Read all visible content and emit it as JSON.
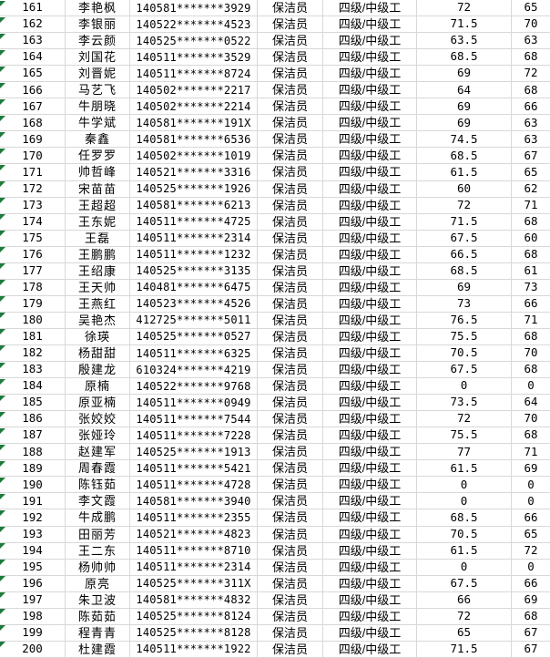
{
  "sheet": {
    "kind": "spreadsheet-fragment",
    "visible_rows": "161-200",
    "columns": [
      "row-number",
      "name",
      "id-number",
      "position",
      "grade-level",
      "score-1",
      "score-2"
    ]
  },
  "colors": {
    "gridline": "#d8d8d8",
    "triangle": "#1e7b3c",
    "text": "#000000",
    "background": "#ffffff"
  },
  "icons": {
    "error_indicator": "cell-error-triangle"
  },
  "rows": [
    {
      "num": "161",
      "name": "李艳枫",
      "id": "140581*******3929",
      "position": "保洁员",
      "level": "四级/中级工",
      "score1": "72",
      "score2": "65"
    },
    {
      "num": "162",
      "name": "李银丽",
      "id": "140522*******4523",
      "position": "保洁员",
      "level": "四级/中级工",
      "score1": "71.5",
      "score2": "70"
    },
    {
      "num": "163",
      "name": "李云颜",
      "id": "140525*******0522",
      "position": "保洁员",
      "level": "四级/中级工",
      "score1": "63.5",
      "score2": "63"
    },
    {
      "num": "164",
      "name": "刘国花",
      "id": "140511*******3529",
      "position": "保洁员",
      "level": "四级/中级工",
      "score1": "68.5",
      "score2": "68"
    },
    {
      "num": "165",
      "name": "刘晋妮",
      "id": "140511*******8724",
      "position": "保洁员",
      "level": "四级/中级工",
      "score1": "69",
      "score2": "72"
    },
    {
      "num": "166",
      "name": "马艺飞",
      "id": "140502*******2217",
      "position": "保洁员",
      "level": "四级/中级工",
      "score1": "64",
      "score2": "68"
    },
    {
      "num": "167",
      "name": "牛朋晓",
      "id": "140502*******2214",
      "position": "保洁员",
      "level": "四级/中级工",
      "score1": "69",
      "score2": "66"
    },
    {
      "num": "168",
      "name": "牛学斌",
      "id": "140581*******191X",
      "position": "保洁员",
      "level": "四级/中级工",
      "score1": "69",
      "score2": "63"
    },
    {
      "num": "169",
      "name": "秦鑫",
      "id": "140581*******6536",
      "position": "保洁员",
      "level": "四级/中级工",
      "score1": "74.5",
      "score2": "63"
    },
    {
      "num": "170",
      "name": "任罗罗",
      "id": "140502*******1019",
      "position": "保洁员",
      "level": "四级/中级工",
      "score1": "68.5",
      "score2": "67"
    },
    {
      "num": "171",
      "name": "帅哲峰",
      "id": "140521*******3316",
      "position": "保洁员",
      "level": "四级/中级工",
      "score1": "61.5",
      "score2": "65"
    },
    {
      "num": "172",
      "name": "宋苗苗",
      "id": "140525*******1926",
      "position": "保洁员",
      "level": "四级/中级工",
      "score1": "60",
      "score2": "62"
    },
    {
      "num": "173",
      "name": "王超超",
      "id": "140581*******6213",
      "position": "保洁员",
      "level": "四级/中级工",
      "score1": "72",
      "score2": "71"
    },
    {
      "num": "174",
      "name": "王东妮",
      "id": "140511*******4725",
      "position": "保洁员",
      "level": "四级/中级工",
      "score1": "71.5",
      "score2": "68"
    },
    {
      "num": "175",
      "name": "王磊",
      "id": "140511*******2314",
      "position": "保洁员",
      "level": "四级/中级工",
      "score1": "67.5",
      "score2": "60"
    },
    {
      "num": "176",
      "name": "王鹏鹏",
      "id": "140511*******1232",
      "position": "保洁员",
      "level": "四级/中级工",
      "score1": "66.5",
      "score2": "68"
    },
    {
      "num": "177",
      "name": "王绍康",
      "id": "140525*******3135",
      "position": "保洁员",
      "level": "四级/中级工",
      "score1": "68.5",
      "score2": "61"
    },
    {
      "num": "178",
      "name": "王天帅",
      "id": "140481*******6475",
      "position": "保洁员",
      "level": "四级/中级工",
      "score1": "69",
      "score2": "73"
    },
    {
      "num": "179",
      "name": "王燕红",
      "id": "140523*******4526",
      "position": "保洁员",
      "level": "四级/中级工",
      "score1": "73",
      "score2": "66"
    },
    {
      "num": "180",
      "name": "吴艳杰",
      "id": "412725*******5011",
      "position": "保洁员",
      "level": "四级/中级工",
      "score1": "76.5",
      "score2": "71"
    },
    {
      "num": "181",
      "name": "徐瑛",
      "id": "140525*******0527",
      "position": "保洁员",
      "level": "四级/中级工",
      "score1": "75.5",
      "score2": "68"
    },
    {
      "num": "182",
      "name": "杨甜甜",
      "id": "140511*******6325",
      "position": "保洁员",
      "level": "四级/中级工",
      "score1": "70.5",
      "score2": "70"
    },
    {
      "num": "183",
      "name": "殷建龙",
      "id": "610324*******4219",
      "position": "保洁员",
      "level": "四级/中级工",
      "score1": "67.5",
      "score2": "68"
    },
    {
      "num": "184",
      "name": "原楠",
      "id": "140522*******9768",
      "position": "保洁员",
      "level": "四级/中级工",
      "score1": "0",
      "score2": "0"
    },
    {
      "num": "185",
      "name": "原亚楠",
      "id": "140511*******0949",
      "position": "保洁员",
      "level": "四级/中级工",
      "score1": "73.5",
      "score2": "64"
    },
    {
      "num": "186",
      "name": "张姣姣",
      "id": "140511*******7544",
      "position": "保洁员",
      "level": "四级/中级工",
      "score1": "72",
      "score2": "70"
    },
    {
      "num": "187",
      "name": "张娅玲",
      "id": "140511*******7228",
      "position": "保洁员",
      "level": "四级/中级工",
      "score1": "75.5",
      "score2": "68"
    },
    {
      "num": "188",
      "name": "赵建军",
      "id": "140525*******1913",
      "position": "保洁员",
      "level": "四级/中级工",
      "score1": "77",
      "score2": "71"
    },
    {
      "num": "189",
      "name": "周春霞",
      "id": "140511*******5421",
      "position": "保洁员",
      "level": "四级/中级工",
      "score1": "61.5",
      "score2": "69"
    },
    {
      "num": "190",
      "name": "陈钰茹",
      "id": "140511*******4728",
      "position": "保洁员",
      "level": "四级/中级工",
      "score1": "0",
      "score2": "0"
    },
    {
      "num": "191",
      "name": "李文霞",
      "id": "140581*******3940",
      "position": "保洁员",
      "level": "四级/中级工",
      "score1": "0",
      "score2": "0"
    },
    {
      "num": "192",
      "name": "牛成鹏",
      "id": "140511*******2355",
      "position": "保洁员",
      "level": "四级/中级工",
      "score1": "68.5",
      "score2": "66"
    },
    {
      "num": "193",
      "name": "田丽芳",
      "id": "140521*******4823",
      "position": "保洁员",
      "level": "四级/中级工",
      "score1": "70.5",
      "score2": "65"
    },
    {
      "num": "194",
      "name": "王二东",
      "id": "140511*******8710",
      "position": "保洁员",
      "level": "四级/中级工",
      "score1": "61.5",
      "score2": "72"
    },
    {
      "num": "195",
      "name": "杨帅帅",
      "id": "140511*******2314",
      "position": "保洁员",
      "level": "四级/中级工",
      "score1": "0",
      "score2": "0"
    },
    {
      "num": "196",
      "name": "原亮",
      "id": "140525*******311X",
      "position": "保洁员",
      "level": "四级/中级工",
      "score1": "67.5",
      "score2": "66"
    },
    {
      "num": "197",
      "name": "朱卫波",
      "id": "140581*******4832",
      "position": "保洁员",
      "level": "四级/中级工",
      "score1": "66",
      "score2": "69"
    },
    {
      "num": "198",
      "name": "陈茹茹",
      "id": "140525*******8124",
      "position": "保洁员",
      "level": "四级/中级工",
      "score1": "72",
      "score2": "68"
    },
    {
      "num": "199",
      "name": "程青青",
      "id": "140525*******8128",
      "position": "保洁员",
      "level": "四级/中级工",
      "score1": "65",
      "score2": "67"
    },
    {
      "num": "200",
      "name": "杜建霞",
      "id": "140511*******1922",
      "position": "保洁员",
      "level": "四级/中级工",
      "score1": "71.5",
      "score2": "67"
    }
  ]
}
